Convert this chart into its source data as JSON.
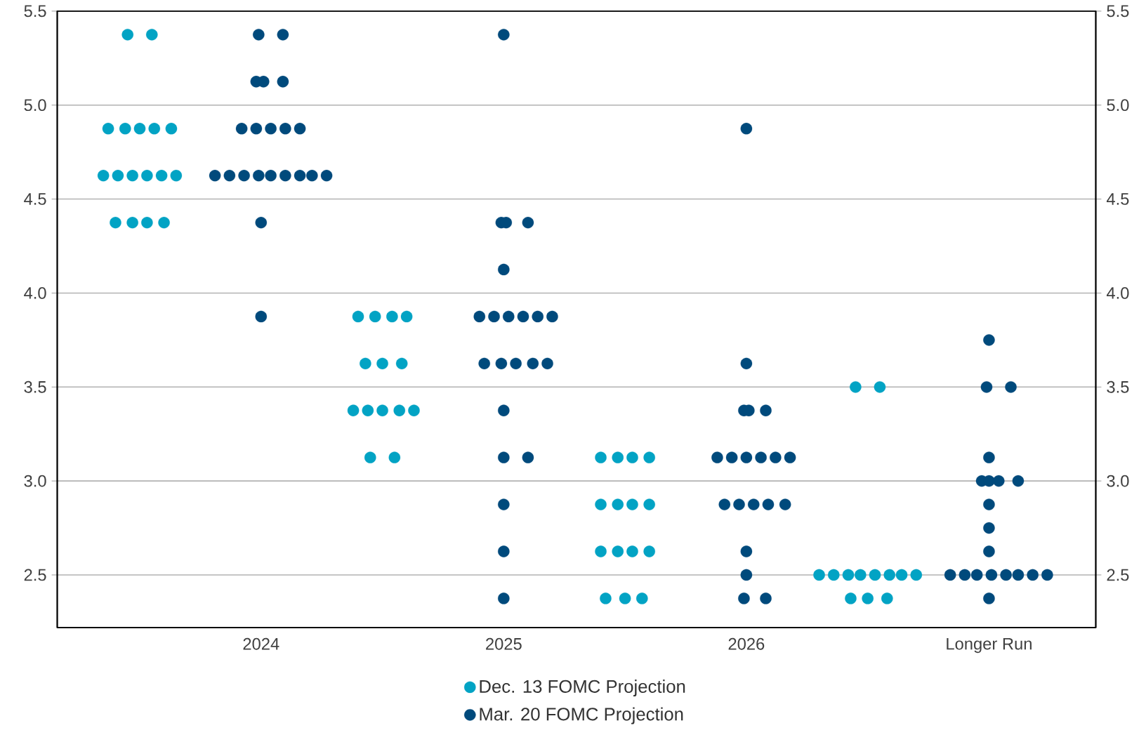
{
  "chart_data": {
    "type": "scatter",
    "xlim": [
      2023.16,
      2027.44
    ],
    "xticks": [
      2024,
      2025,
      2026,
      {
        "value": 2027,
        "label": "Longer Run"
      }
    ],
    "ylim": [
      2.22,
      5.5
    ],
    "yticks": [
      {
        "value": 2.5,
        "label": "2.5"
      },
      {
        "value": 3,
        "label": "3.0"
      },
      {
        "value": 3.5,
        "label": "3.5"
      },
      {
        "value": 4,
        "label": "4.0"
      },
      {
        "value": 4.5,
        "label": "4.5"
      },
      {
        "value": 5,
        "label": "5.0"
      },
      {
        "value": 5.5,
        "label": "5.5"
      }
    ],
    "y2lim": [
      2.22,
      5.5
    ],
    "y2ticks": [
      {
        "value": 2.5,
        "label": "2.5"
      },
      {
        "value": 3,
        "label": "3.0"
      },
      {
        "value": 3.5,
        "label": "3.5"
      },
      {
        "value": 4,
        "label": "4.0"
      },
      {
        "value": 4.5,
        "label": "4.5"
      },
      {
        "value": 5,
        "label": "5.0"
      },
      {
        "value": 5.5,
        "label": "5.5"
      }
    ],
    "grid": "y",
    "legend": "bottom",
    "marker": "circle",
    "series": [
      {
        "name": "Dec. 13 FOMC Projection",
        "color": "#02a3c4",
        "x": [
          2023.45,
          2023.55,
          2023.37,
          2023.44,
          2023.5,
          2023.56,
          2023.63,
          2023.35,
          2023.41,
          2023.47,
          2023.53,
          2023.59,
          2023.65,
          2023.4,
          2023.47,
          2023.53,
          2023.6,
          2024.4,
          2024.47,
          2024.54,
          2024.6,
          2024.43,
          2024.5,
          2024.58,
          2024.38,
          2024.44,
          2024.5,
          2024.57,
          2024.63,
          2024.45,
          2024.55,
          2025.4,
          2025.47,
          2025.53,
          2025.6,
          2025.4,
          2025.47,
          2025.53,
          2025.6,
          2025.4,
          2025.47,
          2025.53,
          2025.6,
          2025.42,
          2025.5,
          2025.57,
          2026.45,
          2026.55,
          2026.3,
          2026.36,
          2026.42,
          2026.47,
          2026.53,
          2026.59,
          2026.64,
          2026.7,
          2026.43,
          2026.5,
          2026.58
        ],
        "values": [
          5.375,
          5.375,
          4.875,
          4.875,
          4.875,
          4.875,
          4.875,
          4.625,
          4.625,
          4.625,
          4.625,
          4.625,
          4.625,
          4.375,
          4.375,
          4.375,
          4.375,
          3.875,
          3.875,
          3.875,
          3.875,
          3.625,
          3.625,
          3.625,
          3.375,
          3.375,
          3.375,
          3.375,
          3.375,
          3.125,
          3.125,
          3.125,
          3.125,
          3.125,
          3.125,
          2.875,
          2.875,
          2.875,
          2.875,
          2.625,
          2.625,
          2.625,
          2.625,
          2.375,
          2.375,
          2.375,
          3.5,
          3.5,
          2.5,
          2.5,
          2.5,
          2.5,
          2.5,
          2.5,
          2.5,
          2.5,
          2.375,
          2.375,
          2.375
        ]
      },
      {
        "name": "Mar. 20 FOMC Projection",
        "color": "#004a7c",
        "x": [
          2023.99,
          2024.09,
          2023.98,
          2024.01,
          2024.09,
          2023.92,
          2023.98,
          2024.04,
          2024.1,
          2024.16,
          2023.81,
          2023.87,
          2023.93,
          2023.99,
          2024.04,
          2024.1,
          2024.16,
          2024.21,
          2024.27,
          2024.0,
          2024.0,
          2025.0,
          2024.99,
          2025.01,
          2025.1,
          2025.0,
          2024.9,
          2024.96,
          2025.02,
          2025.08,
          2025.14,
          2025.2,
          2024.92,
          2024.99,
          2025.05,
          2025.12,
          2025.18,
          2025.0,
          2025.0,
          2025.1,
          2025.0,
          2025.0,
          2025.0,
          2026.0,
          2026.0,
          2025.99,
          2026.01,
          2026.08,
          2025.88,
          2025.94,
          2026.0,
          2026.06,
          2026.12,
          2026.18,
          2025.91,
          2025.97,
          2026.03,
          2026.09,
          2026.16,
          2026.0,
          2026.0,
          2025.99,
          2026.08,
          2027.0,
          2026.99,
          2027.09,
          2027.0,
          2026.97,
          2027.0,
          2027.04,
          2027.12,
          2027.0,
          2027.0,
          2027.0,
          2026.84,
          2026.9,
          2026.95,
          2027.01,
          2027.07,
          2027.12,
          2027.18,
          2027.24,
          2027.0
        ],
        "values": [
          5.375,
          5.375,
          5.125,
          5.125,
          5.125,
          4.875,
          4.875,
          4.875,
          4.875,
          4.875,
          4.625,
          4.625,
          4.625,
          4.625,
          4.625,
          4.625,
          4.625,
          4.625,
          4.625,
          4.375,
          3.875,
          5.375,
          4.375,
          4.375,
          4.375,
          4.125,
          3.875,
          3.875,
          3.875,
          3.875,
          3.875,
          3.875,
          3.625,
          3.625,
          3.625,
          3.625,
          3.625,
          3.375,
          3.125,
          3.125,
          2.875,
          2.625,
          2.375,
          4.875,
          3.625,
          3.375,
          3.375,
          3.375,
          3.125,
          3.125,
          3.125,
          3.125,
          3.125,
          3.125,
          2.875,
          2.875,
          2.875,
          2.875,
          2.875,
          2.625,
          2.5,
          2.375,
          2.375,
          3.75,
          3.5,
          3.5,
          3.125,
          3.0,
          3.0,
          3.0,
          3.0,
          2.875,
          2.75,
          2.625,
          2.5,
          2.5,
          2.5,
          2.5,
          2.5,
          2.5,
          2.5,
          2.5,
          2.375
        ]
      }
    ]
  }
}
